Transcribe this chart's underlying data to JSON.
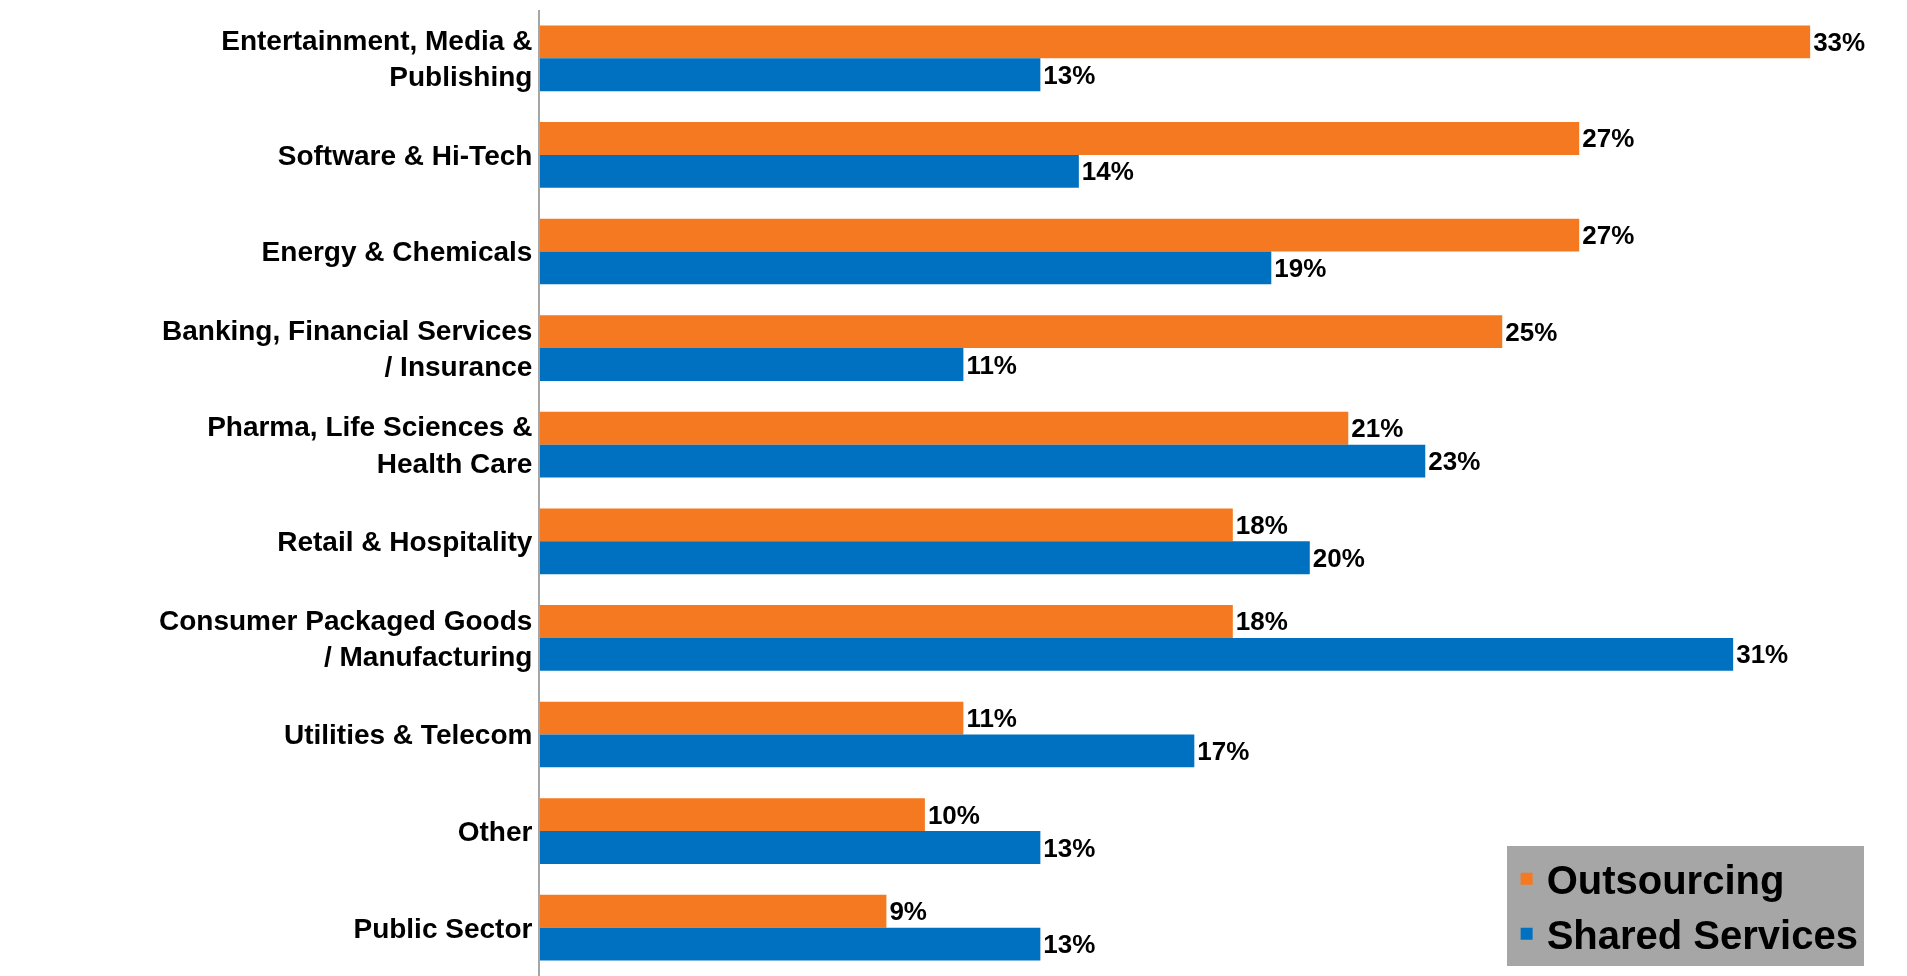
{
  "chart_data": {
    "type": "bar",
    "orientation": "horizontal",
    "categories": [
      "Entertainment, Media &\nPublishing",
      "Software & Hi-Tech",
      "Energy & Chemicals",
      "Banking, Financial Services\n/ Insurance",
      "Pharma, Life Sciences &\nHealth Care",
      "Retail & Hospitality",
      "Consumer Packaged Goods\n/ Manufacturing",
      "Utilities & Telecom",
      "Other",
      "Public Sector"
    ],
    "series": [
      {
        "name": "Outsourcing",
        "color": "#f47920",
        "values": [
          33,
          27,
          27,
          25,
          21,
          18,
          18,
          11,
          10,
          9
        ],
        "value_labels": [
          "33%",
          "27%",
          "27%",
          "25%",
          "21%",
          "18%",
          "18%",
          "11%",
          "10%",
          "9%"
        ]
      },
      {
        "name": "Shared Services",
        "color": "#0070c0",
        "values": [
          13,
          14,
          19,
          11,
          23,
          20,
          31,
          17,
          13,
          13
        ],
        "value_labels": [
          "13%",
          "14%",
          "19%",
          "11%",
          "23%",
          "20%",
          "31%",
          "17%",
          "13%",
          "13%"
        ]
      }
    ],
    "tick_labels": "y",
    "legend": "bottom right"
  }
}
